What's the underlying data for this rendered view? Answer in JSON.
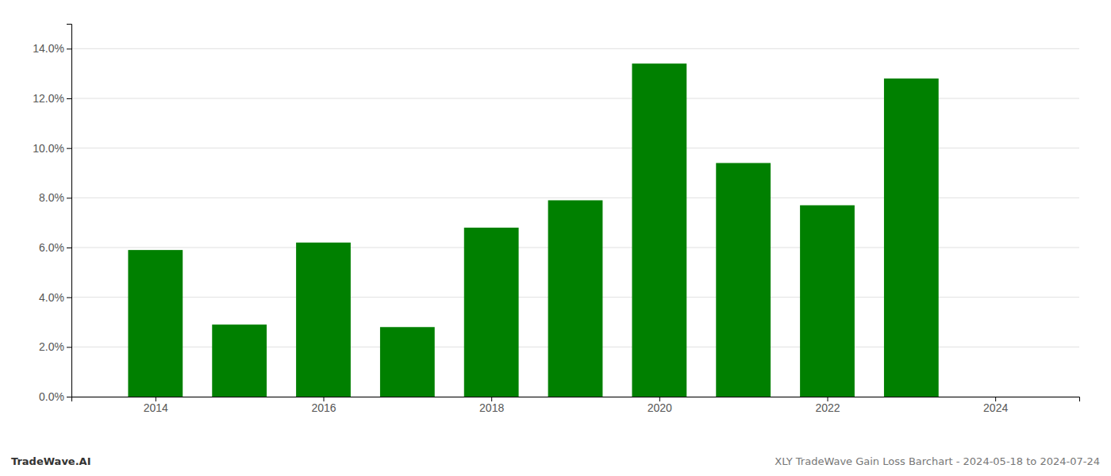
{
  "chart_data": {
    "type": "bar",
    "x": [
      2014,
      2015,
      2016,
      2017,
      2018,
      2019,
      2020,
      2021,
      2022,
      2023
    ],
    "values": [
      0.059,
      0.029,
      0.062,
      0.028,
      0.068,
      0.079,
      0.134,
      0.094,
      0.077,
      0.128
    ],
    "color": "#008000",
    "xlim": [
      2013.0,
      2025.0
    ],
    "xticks": [
      2014,
      2016,
      2018,
      2020,
      2022,
      2024
    ],
    "ylim": [
      0,
      0.15
    ],
    "yticks": [
      {
        "value": 0.0,
        "label": "0.0%"
      },
      {
        "value": 0.02,
        "label": "2.0%"
      },
      {
        "value": 0.04,
        "label": "4.0%"
      },
      {
        "value": 0.06,
        "label": "6.0%"
      },
      {
        "value": 0.08,
        "label": "8.0%"
      },
      {
        "value": 0.1,
        "label": "10.0%"
      },
      {
        "value": 0.12,
        "label": "12.0%"
      },
      {
        "value": 0.14,
        "label": "14.0%"
      }
    ],
    "grid": true,
    "annotations": [
      "TradeWave.AI",
      "XLY TradeWave Gain Loss Barchart - 2024-05-18 to 2024-07-24"
    ]
  }
}
